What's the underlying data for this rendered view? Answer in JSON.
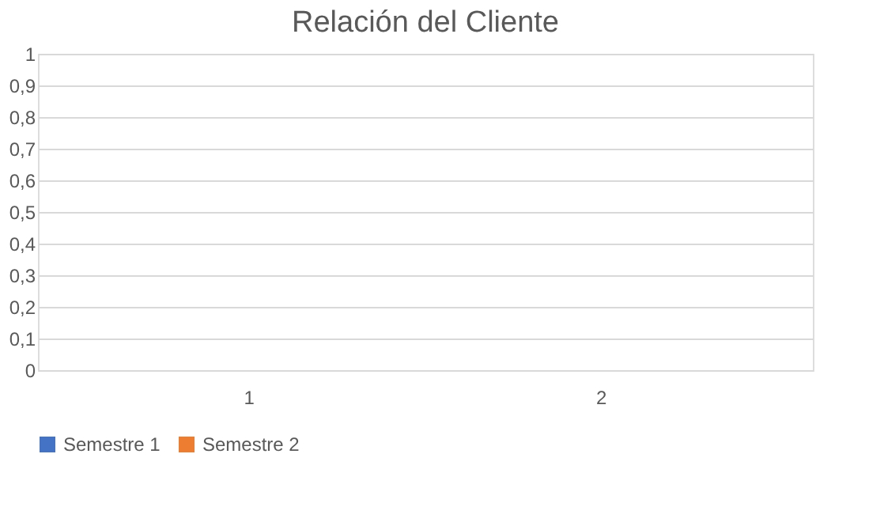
{
  "chart_data": {
    "type": "bar",
    "title": "Relación del Cliente",
    "categories": [
      "1",
      "2"
    ],
    "series": [
      {
        "name": "Semestre 1",
        "color": "#4472c4",
        "values": [
          0,
          0
        ]
      },
      {
        "name": "Semestre 2",
        "color": "#ed7d31",
        "values": [
          0,
          0
        ]
      }
    ],
    "ylim": [
      0,
      1
    ],
    "yticks": [
      0,
      {
        "value": 0.1,
        "label": "0,1"
      },
      {
        "value": 0.2,
        "label": "0,2"
      },
      {
        "value": 0.3,
        "label": "0,3"
      },
      {
        "value": 0.4,
        "label": "0,4"
      },
      {
        "value": 0.5,
        "label": "0,5"
      },
      {
        "value": 0.6,
        "label": "0,6"
      },
      {
        "value": 0.7,
        "label": "0,7"
      },
      {
        "value": 0.8,
        "label": "0,8"
      },
      {
        "value": 0.9,
        "label": "0,9"
      },
      1
    ],
    "grid": "y",
    "legend": "bottom"
  }
}
